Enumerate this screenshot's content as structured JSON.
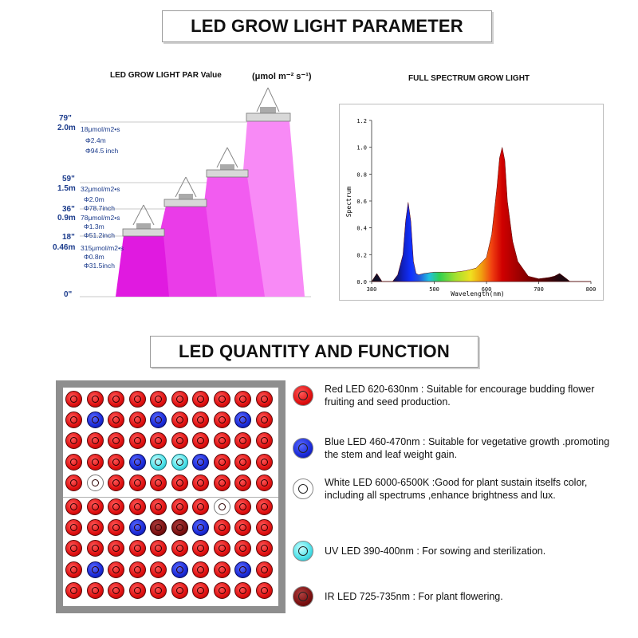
{
  "header": {
    "title": "LED GROW LIGHT PARAMETER"
  },
  "par_panel": {
    "title": "LED GROW LIGHT  PAR Value",
    "unit": "(μmol m⁻² s⁻¹)",
    "levels": [
      {
        "inch": "79\"",
        "meter": "2.0m",
        "par": "18μmol/m2•s",
        "dia_m": "Φ2.4m",
        "dia_in": "Φ94.5 inch"
      },
      {
        "inch": "59\"",
        "meter": "1.5m",
        "par": "32μmol/m2•s",
        "dia_m": "Φ2.0m",
        "dia_in": "Φ78.7inch"
      },
      {
        "inch": "36\"",
        "meter": "0.9m",
        "par": "78μmol/m2•s",
        "dia_m": "Φ1.3m",
        "dia_in": "Φ51.2inch"
      },
      {
        "inch": "18\"",
        "meter": "0.46m",
        "par": "315μmol/m2•s",
        "dia_m": "Φ0.8m",
        "dia_in": "Φ31.5inch"
      }
    ],
    "zero_label": "0\"",
    "colors": {
      "beam1": "#e01ae0",
      "beam2": "#ea3ce8",
      "beam3": "#f25cf0",
      "beam4": "#f88af6"
    }
  },
  "spectrum_panel": {
    "title": "FULL SPECTRUM GROW LIGHT",
    "chart_data": {
      "type": "area",
      "xlabel": "Wavelength(nm)",
      "ylabel": "Spectrum",
      "xlim": [
        380,
        800
      ],
      "ylim": [
        0,
        1.2
      ],
      "x_ticks": [
        "380",
        "500",
        "600",
        "700",
        "800"
      ],
      "y_ticks": [
        "0.0",
        "0.2",
        "0.4",
        "0.6",
        "0.8",
        "1.0",
        "1.2"
      ],
      "x": [
        380,
        390,
        400,
        410,
        420,
        430,
        440,
        445,
        450,
        455,
        460,
        465,
        470,
        480,
        500,
        520,
        540,
        560,
        580,
        600,
        610,
        620,
        625,
        630,
        635,
        640,
        650,
        660,
        680,
        700,
        720,
        730,
        740,
        750,
        760,
        780,
        800
      ],
      "values": [
        0.0,
        0.06,
        0.0,
        0.0,
        0.0,
        0.05,
        0.2,
        0.45,
        0.59,
        0.45,
        0.15,
        0.06,
        0.05,
        0.06,
        0.07,
        0.07,
        0.07,
        0.08,
        0.1,
        0.18,
        0.35,
        0.7,
        0.92,
        1.0,
        0.9,
        0.6,
        0.3,
        0.15,
        0.04,
        0.02,
        0.03,
        0.04,
        0.06,
        0.03,
        0.0,
        0.0,
        0.0
      ]
    }
  },
  "section2": {
    "title": "LED QUANTITY AND FUNCTION"
  },
  "legend": [
    {
      "type": "red",
      "text": "Red LED 620-630nm  : Suitable for encourage budding flower fruiting and seed production."
    },
    {
      "type": "blue",
      "text": "Blue LED 460-470nm    : Suitable for vegetative growth .promoting the stem and leaf weight gain."
    },
    {
      "type": "white",
      "text": "White LED 6000-6500K :Good for plant sustain itselfs color, including all spectrums ,enhance brightness and lux."
    },
    {
      "type": "uv",
      "text": "UV LED  390-400nm : For sowing and sterilization."
    },
    {
      "type": "ir",
      "text": "IR LED   725-735nm   : For plant flowering."
    }
  ],
  "led_grid": {
    "columns": 10,
    "rows": [
      "RRRRRRRRRR",
      "RBRRBRRRBR",
      "RRRRRRRRRR",
      "RRRBUUBRRR",
      "RWRRRRRRRR",
      "RRRRRRRWRR",
      "RRRBIIBRRR",
      "RRRRRRRRRR",
      "RBRRRBRRBR",
      "RRRRRRRRRR"
    ]
  }
}
